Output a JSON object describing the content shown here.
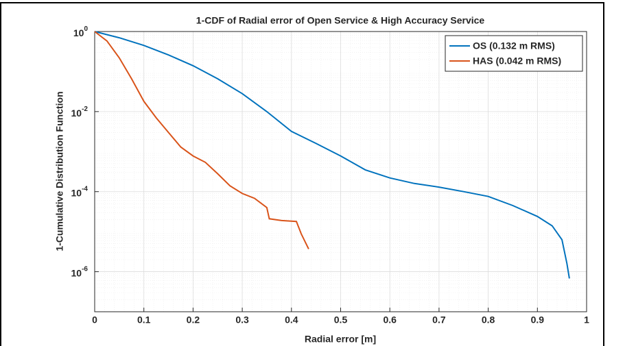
{
  "chart_data": {
    "type": "line",
    "title": "1-CDF of Radial error of Open Service & High Accuracy Service",
    "x_label": "Radial error [m]",
    "y_label": "1-Cumulative Distribution Function",
    "xlim": [
      0,
      1
    ],
    "xticks": [
      0,
      0.1,
      0.2,
      0.3,
      0.4,
      0.5,
      0.6,
      0.7,
      0.8,
      0.9,
      1
    ],
    "ylim": [
      1e-07,
      1
    ],
    "yscale": "log",
    "yticks": [
      {
        "value": 1,
        "label": "10",
        "exponent": "0"
      },
      {
        "value": 0.01,
        "label": "10",
        "exponent": "-2"
      },
      {
        "value": 0.0001,
        "label": "10",
        "exponent": "-4"
      },
      {
        "value": 1e-06,
        "label": "10",
        "exponent": "-6"
      }
    ],
    "grid": true,
    "minor_grid": true,
    "legend": "top-right",
    "series": [
      {
        "name": "OS (0.132 m RMS)",
        "color": "#0072bd",
        "x": [
          0,
          0.05,
          0.1,
          0.15,
          0.2,
          0.25,
          0.3,
          0.35,
          0.4,
          0.45,
          0.5,
          0.55,
          0.6,
          0.65,
          0.7,
          0.75,
          0.8,
          0.85,
          0.9,
          0.93,
          0.95,
          0.96,
          0.965
        ],
        "values": [
          1,
          0.7,
          0.45,
          0.26,
          0.14,
          0.066,
          0.028,
          0.01,
          0.0032,
          0.0016,
          0.00078,
          0.00035,
          0.00022,
          0.00016,
          0.00013,
          0.0001,
          7.6e-05,
          4.5e-05,
          2.4e-05,
          1.4e-05,
          6.3e-06,
          1.6e-06,
          6.8e-07
        ]
      },
      {
        "name": "HAS (0.042 m RMS)",
        "color": "#d95319",
        "x": [
          0,
          0.025,
          0.05,
          0.075,
          0.1,
          0.125,
          0.15,
          0.175,
          0.2,
          0.225,
          0.25,
          0.275,
          0.3,
          0.325,
          0.35,
          0.355,
          0.38,
          0.41,
          0.42,
          0.435
        ],
        "values": [
          1,
          0.58,
          0.22,
          0.066,
          0.018,
          0.007,
          0.003,
          0.0013,
          0.00078,
          0.00054,
          0.00028,
          0.00014,
          9e-05,
          6.8e-05,
          4e-05,
          2.1e-05,
          1.9e-05,
          1.8e-05,
          8.8e-06,
          3.7e-06
        ]
      }
    ]
  }
}
